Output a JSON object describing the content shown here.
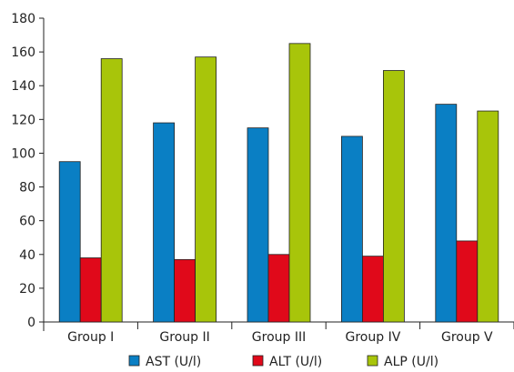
{
  "chart_data": {
    "type": "bar",
    "categories": [
      "Group I",
      "Group II",
      "Group III",
      "Group IV",
      "Group V"
    ],
    "series": [
      {
        "name": "AST (U/l)",
        "color": "#0a7fc4",
        "values": [
          95,
          118,
          115,
          110,
          129
        ]
      },
      {
        "name": "ALT (U/l)",
        "color": "#e0091a",
        "values": [
          38,
          37,
          40,
          39,
          48
        ]
      },
      {
        "name": "ALP (U/l)",
        "color": "#a8c50a",
        "values": [
          156,
          157,
          165,
          149,
          125
        ]
      }
    ],
    "ylim": [
      0,
      180
    ],
    "yticks": [
      0,
      20,
      40,
      60,
      80,
      100,
      120,
      140,
      160,
      180
    ],
    "grid": false,
    "legend_position": "bottom",
    "xlabel": "",
    "ylabel": "",
    "title": ""
  }
}
